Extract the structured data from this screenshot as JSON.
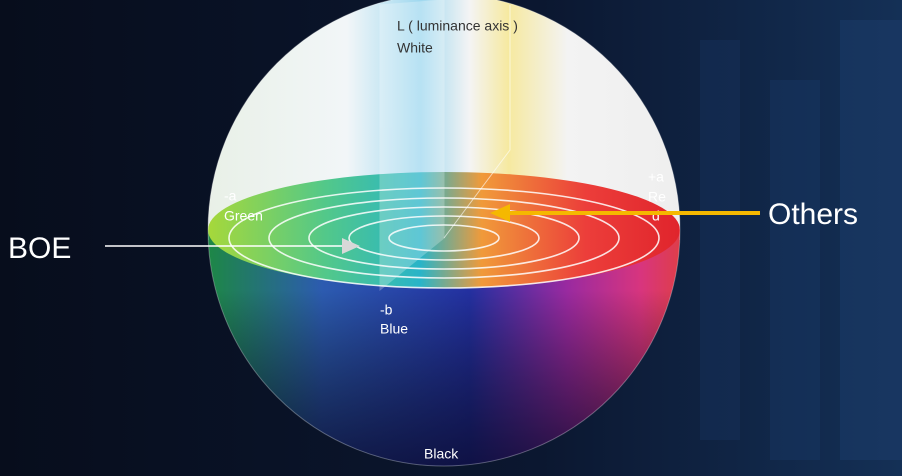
{
  "sphere": {
    "luminance_axis": "L ( luminance axis )",
    "top": "White",
    "bottom": "Black",
    "minus_a": {
      "sign": "-a",
      "name": "Green"
    },
    "plus_a": {
      "sign": "+a",
      "name_lines": [
        "Re",
        "d"
      ]
    },
    "minus_b": {
      "sign": "-b",
      "name": "Blue"
    }
  },
  "callouts": {
    "left": "BOE",
    "right": "Others"
  }
}
